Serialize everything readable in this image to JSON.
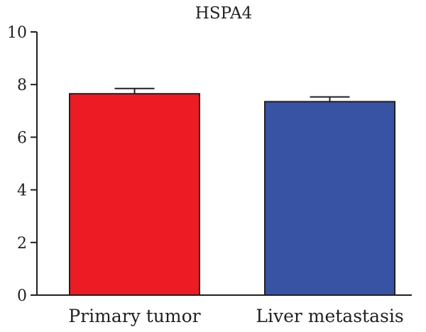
{
  "chart_data": {
    "type": "bar",
    "title": "HSPA4",
    "xlabel": "",
    "ylabel": "",
    "categories": [
      "Primary tumor",
      "Liver metastasis"
    ],
    "values": [
      7.65,
      7.35
    ],
    "errors": [
      0.2,
      0.18
    ],
    "colors": [
      "#ed1c24",
      "#3953a4"
    ],
    "ylim": [
      0,
      10
    ],
    "yticks": [
      0,
      2,
      4,
      6,
      8,
      10
    ],
    "grid": false,
    "legend": "none"
  }
}
